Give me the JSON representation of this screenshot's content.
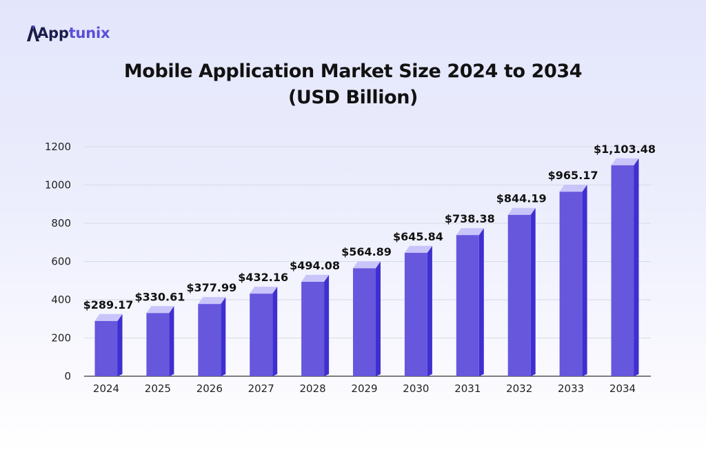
{
  "logo": {
    "text_part1": "App",
    "text_part2": "tunix"
  },
  "chart_data": {
    "type": "bar",
    "title": "Mobile Application Market Size 2024 to 2034",
    "subtitle": "(USD Billion)",
    "categories": [
      "2024",
      "2025",
      "2026",
      "2027",
      "2028",
      "2029",
      "2030",
      "2031",
      "2032",
      "2033",
      "2034"
    ],
    "values": [
      289.17,
      330.61,
      377.99,
      432.16,
      494.08,
      564.89,
      645.84,
      738.38,
      844.19,
      965.17,
      1103.48
    ],
    "value_labels": [
      "$289.17",
      "$330.61",
      "$377.99",
      "$432.16",
      "$494.08",
      "$564.89",
      "$645.84",
      "$738.38",
      "$844.19",
      "$965.17",
      "$1,103.48"
    ],
    "ylim": [
      0,
      1200
    ],
    "yticks": [
      0,
      200,
      400,
      600,
      800,
      1000,
      1200
    ],
    "xlabel": "",
    "ylabel": "",
    "grid": true,
    "colors": {
      "bar_front": "#6657dd",
      "bar_side": "#3f2fd0",
      "bar_top": "#c9c5fb",
      "grid": "#d8d8e6",
      "axis": "#333333"
    }
  }
}
